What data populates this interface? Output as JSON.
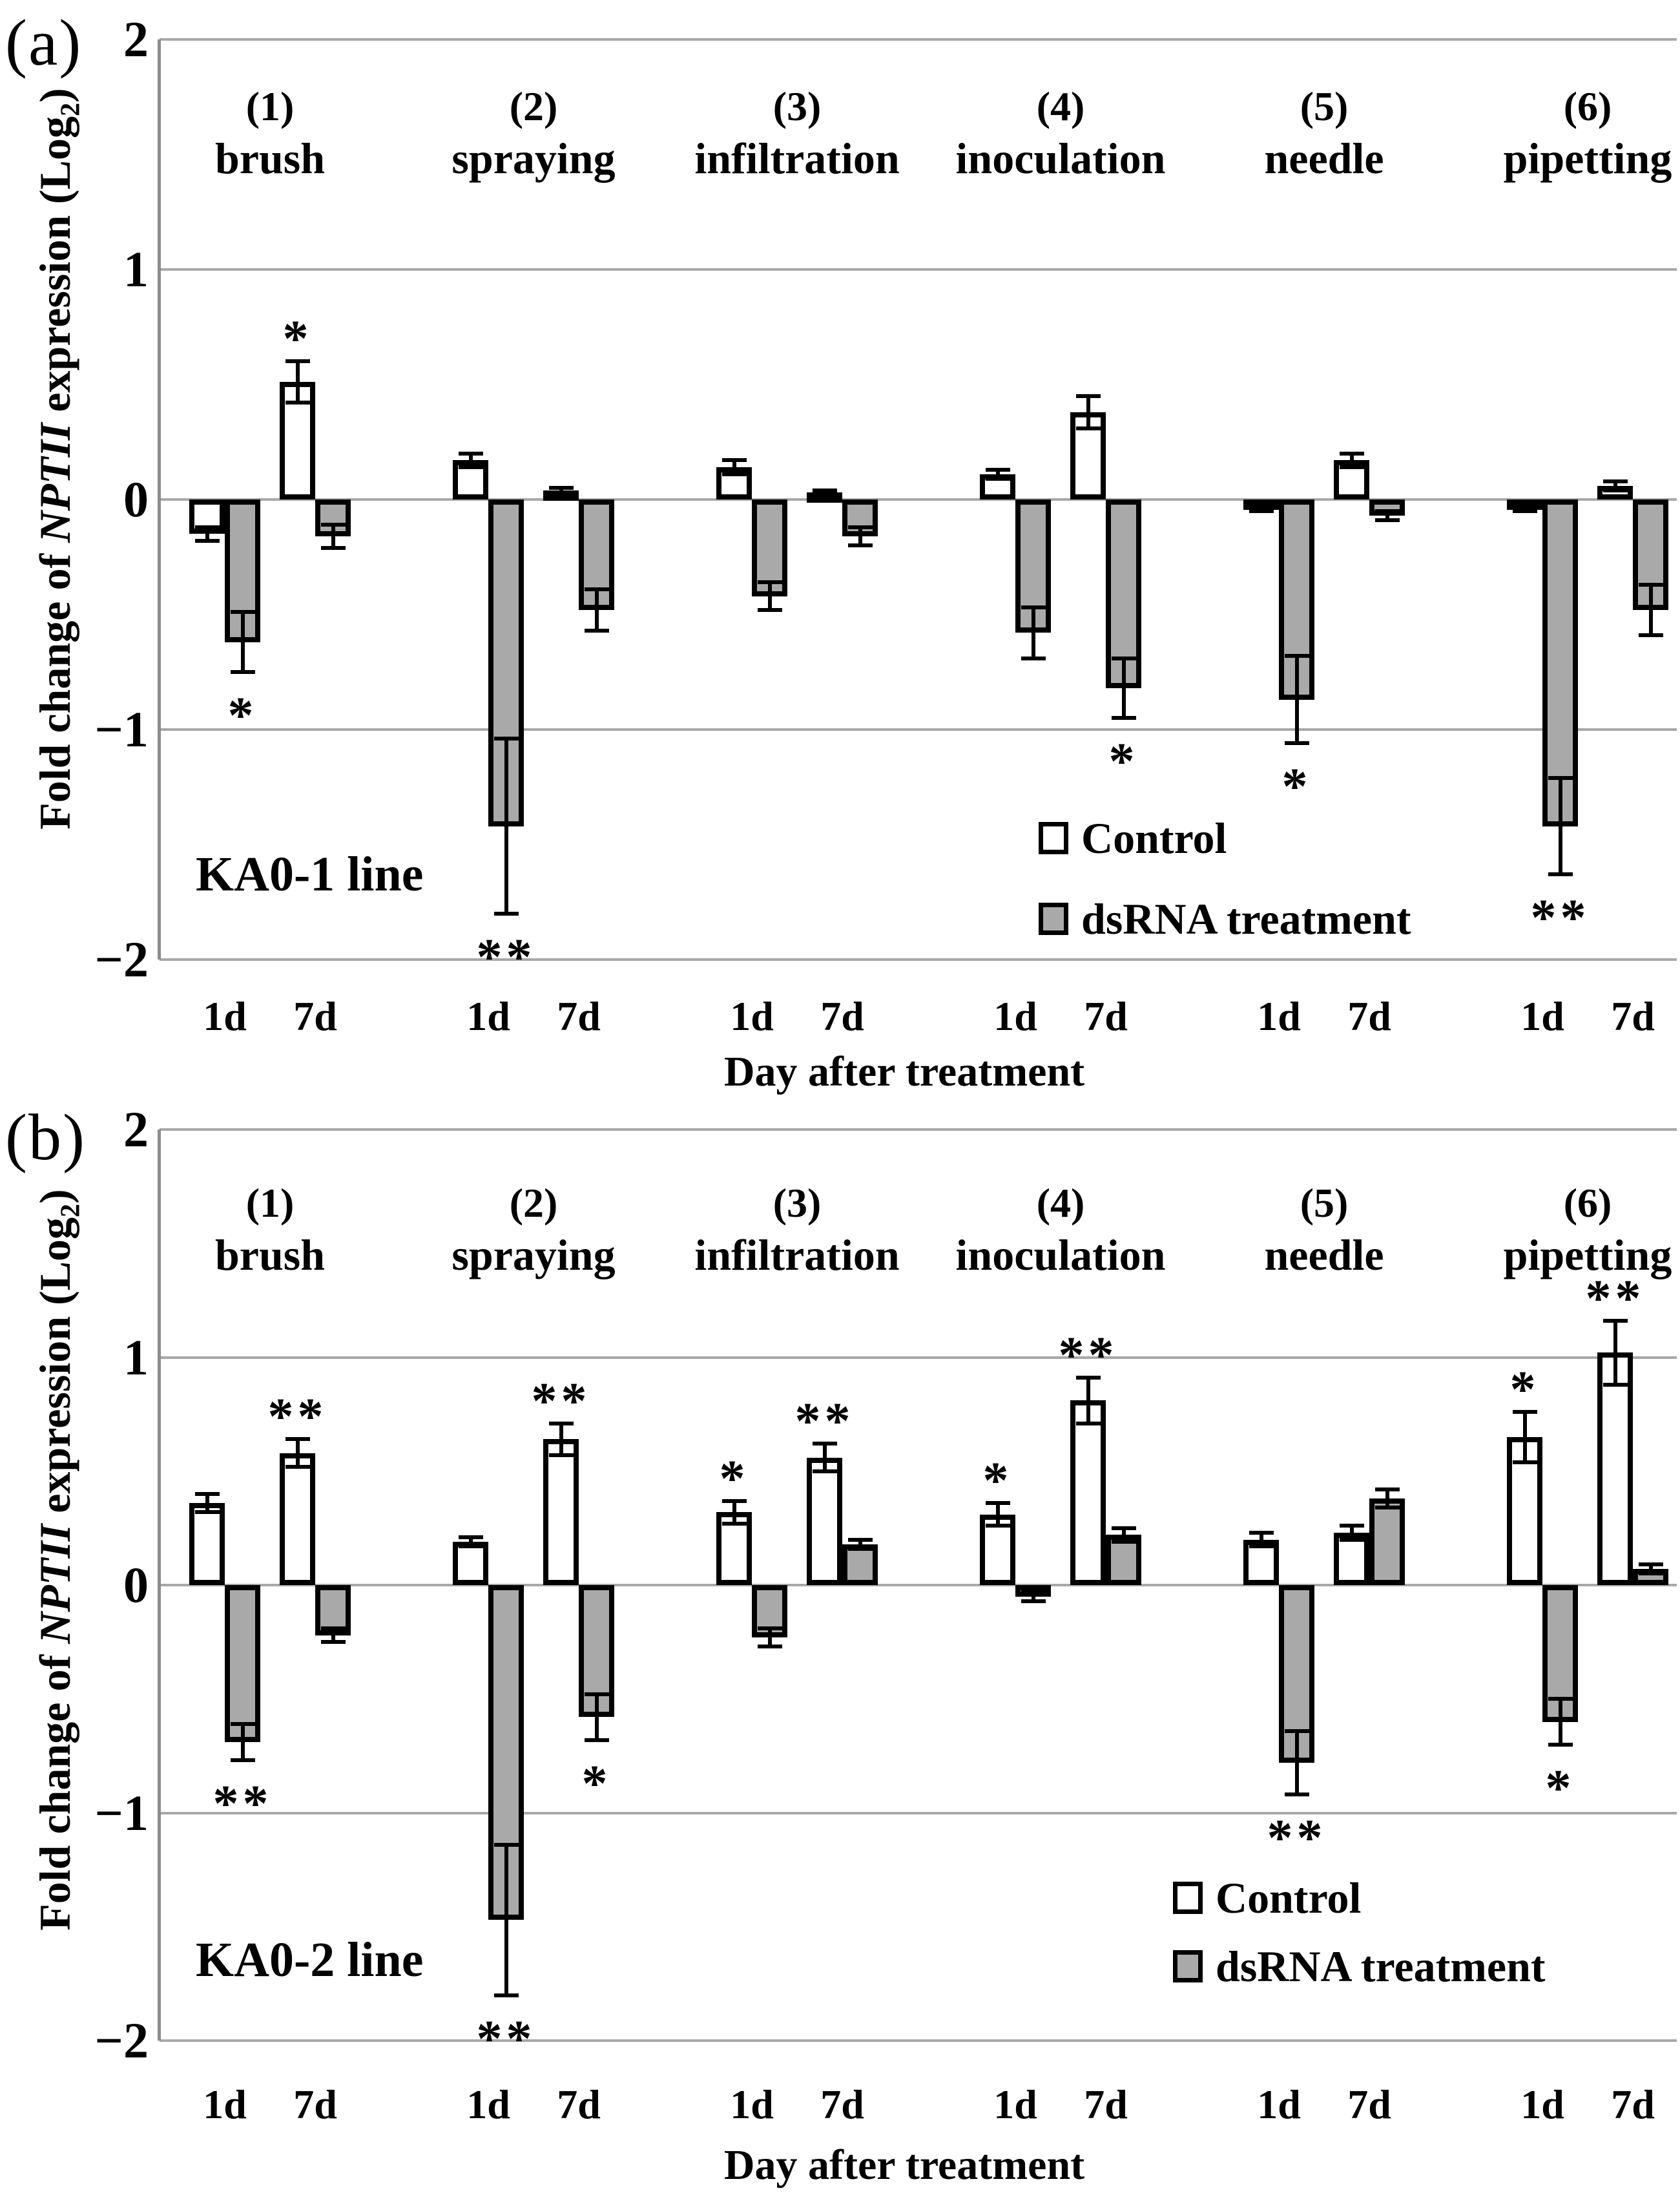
{
  "figure": {
    "panels": [
      {
        "tag": "(a)",
        "line_label": "KA0-1 line",
        "y_title_prefix": "Fold change of ",
        "y_title_gene": "NPTII",
        "y_title_mid": " expression (Log",
        "y_title_sub": "2",
        "y_title_suffix": ")",
        "x_axis_title": "Day after treatment",
        "legend_control": "Control",
        "legend_treatment": "dsRNA treatment"
      },
      {
        "tag": "(b)",
        "line_label": "KA0-2 line",
        "y_title_prefix": "Fold change of ",
        "y_title_gene": "NPTII",
        "y_title_mid": " expression (Log",
        "y_title_sub": "2",
        "y_title_suffix": ")",
        "x_axis_title": "Day after treatment",
        "legend_control": "Control",
        "legend_treatment": "dsRNA treatment"
      }
    ]
  },
  "chart_data": [
    {
      "type": "bar",
      "panel": "(a)",
      "title": "KA0-1 line",
      "ylabel": "Fold change of NPTII expression (Log2)",
      "xlabel": "Day after treatment",
      "ylim": [
        -2,
        2
      ],
      "yticks": [
        2,
        1,
        0,
        -1,
        -2
      ],
      "y_tick_labels": [
        "2",
        "1",
        "0",
        "−1",
        "−2"
      ],
      "grid": true,
      "legend_position": "inside-lower-right",
      "legend": [
        "Control",
        "dsRNA treatment"
      ],
      "categories": [
        "brush",
        "spraying",
        "infiltration",
        "inoculation",
        "needle",
        "pipetting"
      ],
      "group_numbers": [
        "(1)",
        "(2)",
        "(3)",
        "(4)",
        "(5)",
        "(6)"
      ],
      "timepoints": [
        "1d",
        "7d"
      ],
      "series": [
        {
          "name": "Control",
          "timepoint": "1d",
          "values": [
            -0.15,
            0.17,
            0.14,
            0.11,
            -0.04,
            -0.04
          ],
          "errors": [
            0.03,
            0.03,
            0.03,
            0.02,
            0.01,
            0.01
          ],
          "sig": [
            "",
            "",
            "",
            "",
            "",
            ""
          ]
        },
        {
          "name": "dsRNA treatment",
          "timepoint": "1d",
          "values": [
            -0.62,
            -1.42,
            -0.42,
            -0.58,
            -0.87,
            -1.42
          ],
          "errors": [
            0.13,
            0.38,
            0.06,
            0.11,
            0.19,
            0.21
          ],
          "sig": [
            "*",
            "**",
            "",
            "",
            "*",
            "**"
          ]
        },
        {
          "name": "Control",
          "timepoint": "7d",
          "values": [
            0.51,
            0.04,
            0.03,
            0.38,
            0.17,
            0.06
          ],
          "errors": [
            0.09,
            0.01,
            0.01,
            0.07,
            0.03,
            0.02
          ],
          "sig": [
            "*",
            "",
            "",
            "",
            "",
            ""
          ]
        },
        {
          "name": "dsRNA treatment",
          "timepoint": "7d",
          "values": [
            -0.16,
            -0.48,
            -0.16,
            -0.82,
            -0.07,
            -0.48
          ],
          "errors": [
            0.05,
            0.09,
            0.04,
            0.13,
            0.02,
            0.11
          ],
          "sig": [
            "",
            "",
            "",
            "*",
            "",
            ""
          ]
        }
      ]
    },
    {
      "type": "bar",
      "panel": "(b)",
      "title": "KA0-2 line",
      "ylabel": "Fold change of NPTII expression (Log2)",
      "xlabel": "Day after treatment",
      "ylim": [
        -2,
        2
      ],
      "yticks": [
        2,
        1,
        0,
        -1,
        -2
      ],
      "y_tick_labels": [
        "2",
        "1",
        "0",
        "−1",
        "−2"
      ],
      "grid": true,
      "legend_position": "inside-lower-right",
      "legend": [
        "Control",
        "dsRNA treatment"
      ],
      "categories": [
        "brush",
        "spraying",
        "infiltration",
        "inoculation",
        "needle",
        "pipetting"
      ],
      "group_numbers": [
        "(1)",
        "(2)",
        "(3)",
        "(4)",
        "(5)",
        "(6)"
      ],
      "timepoints": [
        "1d",
        "7d"
      ],
      "series": [
        {
          "name": "Control",
          "timepoint": "1d",
          "values": [
            0.36,
            0.19,
            0.32,
            0.31,
            0.2,
            0.65
          ],
          "errors": [
            0.04,
            0.02,
            0.05,
            0.05,
            0.03,
            0.11
          ],
          "sig": [
            "",
            "",
            "*",
            "*",
            "",
            "*"
          ]
        },
        {
          "name": "dsRNA treatment",
          "timepoint": "1d",
          "values": [
            -0.69,
            -1.47,
            -0.23,
            -0.05,
            -0.78,
            -0.6
          ],
          "errors": [
            0.08,
            0.33,
            0.04,
            0.02,
            0.14,
            0.1
          ],
          "sig": [
            "**",
            "**",
            "",
            "",
            "**",
            "*"
          ]
        },
        {
          "name": "Control",
          "timepoint": "7d",
          "values": [
            0.58,
            0.64,
            0.56,
            0.81,
            0.23,
            1.02
          ],
          "errors": [
            0.06,
            0.07,
            0.06,
            0.1,
            0.03,
            0.14
          ],
          "sig": [
            "**",
            "**",
            "**",
            "**",
            "",
            "**"
          ]
        },
        {
          "name": "dsRNA treatment",
          "timepoint": "7d",
          "values": [
            -0.22,
            -0.58,
            0.18,
            0.22,
            0.38,
            0.07
          ],
          "errors": [
            0.03,
            0.1,
            0.02,
            0.03,
            0.04,
            0.02
          ],
          "sig": [
            "",
            "*",
            "",
            "",
            "",
            ""
          ]
        }
      ]
    }
  ]
}
